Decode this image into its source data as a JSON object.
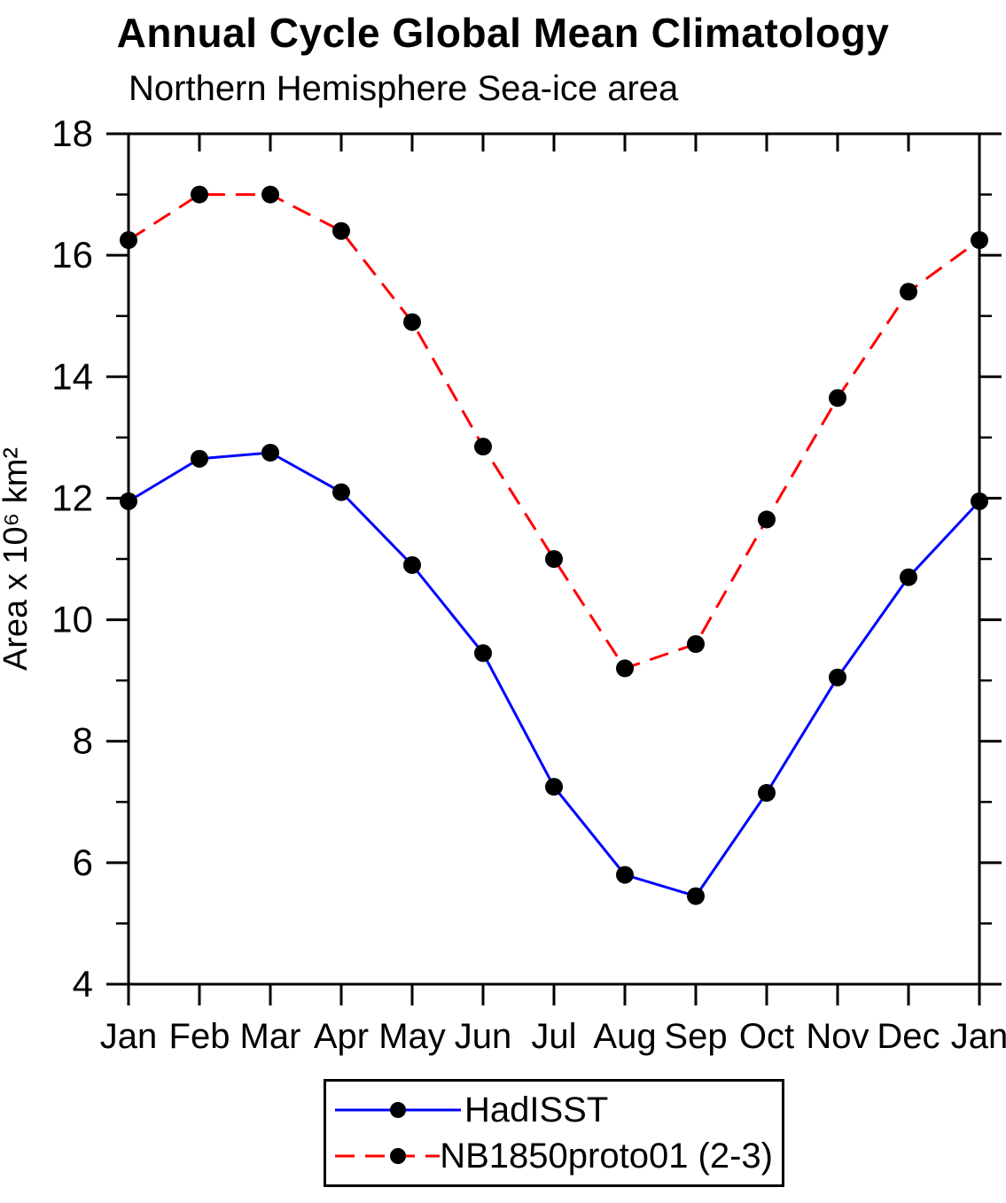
{
  "page": {
    "title": "Annual Cycle Global Mean Climatology",
    "subtitle": "Northern Hemisphere Sea-ice area"
  },
  "chart_data": {
    "type": "line",
    "title": "Annual Cycle Global Mean Climatology",
    "subtitle": "Northern Hemisphere Sea-ice area",
    "xlabel": "",
    "ylabel": "Area x 10⁶ km²",
    "ylim": [
      4,
      18
    ],
    "ytick_major": [
      4,
      6,
      8,
      10,
      12,
      14,
      16,
      18
    ],
    "ytick_minor": [
      5,
      7,
      9,
      11,
      13,
      15,
      17
    ],
    "categories": [
      "Jan",
      "Feb",
      "Mar",
      "Apr",
      "May",
      "Jun",
      "Jul",
      "Aug",
      "Sep",
      "Oct",
      "Nov",
      "Dec",
      "Jan"
    ],
    "grid": false,
    "legend_position": "bottom",
    "frame_color": "#000000",
    "marker": {
      "shape": "circle",
      "color": "#000000",
      "radius": 10
    },
    "series": [
      {
        "name": "HadISST",
        "color": "#0000ff",
        "dash": "solid",
        "values": [
          11.95,
          12.65,
          12.75,
          12.1,
          10.9,
          9.45,
          7.25,
          5.8,
          5.45,
          7.15,
          9.05,
          10.7,
          11.95
        ]
      },
      {
        "name": "NB1850proto01 (2-3)",
        "color": "#ff0000",
        "dash": "dashed",
        "values": [
          16.25,
          17.0,
          17.0,
          16.4,
          14.9,
          12.85,
          11.0,
          9.2,
          9.6,
          11.65,
          13.65,
          15.4,
          16.25
        ]
      }
    ]
  }
}
